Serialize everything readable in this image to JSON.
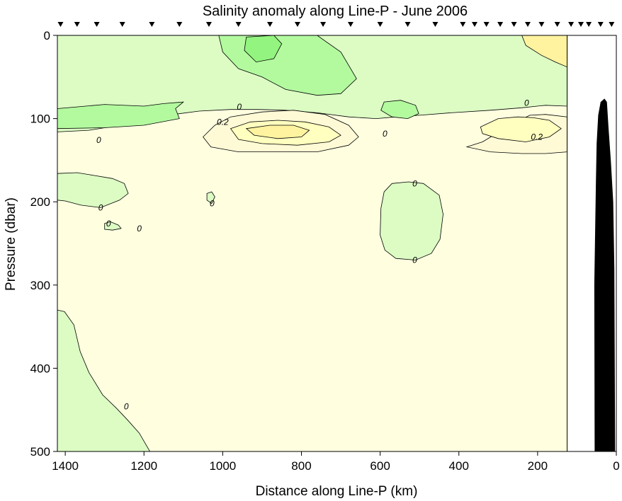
{
  "chart_data": {
    "type": "contour",
    "title": "Salinity anomaly along Line-P - June 2006",
    "xlabel": "Distance along Line-P (km)",
    "ylabel": "Pressure (dbar)",
    "xlim": [
      1420,
      0
    ],
    "ylim": [
      0,
      500
    ],
    "x_ticks": [
      1400,
      1200,
      1000,
      800,
      600,
      400,
      200,
      0
    ],
    "y_ticks": [
      0,
      100,
      200,
      300,
      400,
      500
    ],
    "x_tick_labels": [
      "1400",
      "1200",
      "1000",
      "800",
      "600",
      "400",
      "200",
      "0"
    ],
    "y_tick_labels": [
      "0",
      "100",
      "200",
      "300",
      "400",
      "500"
    ],
    "data_extent_km": 125,
    "stations_km": [
      1412,
      1370,
      1320,
      1255,
      1180,
      1110,
      1035,
      960,
      880,
      810,
      745,
      675,
      600,
      530,
      460,
      390,
      360,
      330,
      295,
      260,
      225,
      190,
      150,
      115,
      90,
      70,
      40,
      12
    ],
    "colors": {
      "zero": "#ffffe0",
      "neg_0_1": "#dcfcc4",
      "neg_0_2": "#b3fa9f",
      "neg_0_3": "#93f47f",
      "pos_0_1": "#fffad6",
      "pos_0_2": "#ffffbf",
      "pos_0_3": "#fff3a0",
      "bathymetry": "#000000"
    },
    "contour_labels": [
      {
        "text": "0",
        "x": 958,
        "y": 86
      },
      {
        "text": "0.2",
        "x": 1000,
        "y": 104
      },
      {
        "text": "0",
        "x": 1315,
        "y": 126
      },
      {
        "text": "0",
        "x": 588,
        "y": 118
      },
      {
        "text": "0",
        "x": 228,
        "y": 81
      },
      {
        "text": "0.2",
        "x": 202,
        "y": 122
      },
      {
        "text": "0",
        "x": 512,
        "y": 178
      },
      {
        "text": "0",
        "x": 1310,
        "y": 207
      },
      {
        "text": "0",
        "x": 1027,
        "y": 202
      },
      {
        "text": "0",
        "x": 1290,
        "y": 226
      },
      {
        "text": "0",
        "x": 1212,
        "y": 232
      },
      {
        "text": "0",
        "x": 512,
        "y": 270
      },
      {
        "text": "0",
        "x": 1245,
        "y": 446
      }
    ],
    "regions": [
      {
        "name": "background-anomaly",
        "value": 0,
        "color": "#ffffe0",
        "points": [
          [
            1420,
            0
          ],
          [
            125,
            0
          ],
          [
            125,
            500
          ],
          [
            1420,
            500
          ]
        ]
      },
      {
        "name": "upper-layer-negative",
        "value": -0.1,
        "color": "#dcfcc4",
        "points": [
          [
            1420,
            0
          ],
          [
            125,
            0
          ],
          [
            125,
            85
          ],
          [
            180,
            84
          ],
          [
            240,
            87
          ],
          [
            320,
            90
          ],
          [
            420,
            93
          ],
          [
            500,
            96
          ],
          [
            560,
            98
          ],
          [
            610,
            100
          ],
          [
            680,
            98
          ],
          [
            760,
            93
          ],
          [
            840,
            90
          ],
          [
            910,
            89
          ],
          [
            980,
            89
          ],
          [
            1060,
            91
          ],
          [
            1140,
            96
          ],
          [
            1200,
            102
          ],
          [
            1260,
            108
          ],
          [
            1340,
            114
          ],
          [
            1420,
            116
          ]
        ]
      },
      {
        "name": "deep-negative-southwest",
        "value": -0.1,
        "color": "#dcfcc4",
        "points": [
          [
            1420,
            330
          ],
          [
            1402,
            332
          ],
          [
            1378,
            348
          ],
          [
            1362,
            380
          ],
          [
            1340,
            405
          ],
          [
            1305,
            432
          ],
          [
            1270,
            448
          ],
          [
            1242,
            462
          ],
          [
            1212,
            478
          ],
          [
            1185,
            500
          ],
          [
            1420,
            500
          ]
        ]
      },
      {
        "name": "mid-negative-patch",
        "value": -0.1,
        "color": "#dcfcc4",
        "points": [
          [
            570,
            178
          ],
          [
            528,
            176
          ],
          [
            490,
            178
          ],
          [
            450,
            192
          ],
          [
            440,
            215
          ],
          [
            448,
            245
          ],
          [
            470,
            262
          ],
          [
            510,
            270
          ],
          [
            560,
            268
          ],
          [
            588,
            258
          ],
          [
            600,
            240
          ],
          [
            598,
            208
          ],
          [
            590,
            188
          ]
        ]
      },
      {
        "name": "left-negative-tongue",
        "value": -0.1,
        "color": "#dcfcc4",
        "points": [
          [
            1420,
            166
          ],
          [
            1370,
            165
          ],
          [
            1330,
            168
          ],
          [
            1280,
            172
          ],
          [
            1250,
            178
          ],
          [
            1240,
            190
          ],
          [
            1262,
            198
          ],
          [
            1310,
            207
          ],
          [
            1360,
            204
          ],
          [
            1400,
            199
          ],
          [
            1420,
            198
          ]
        ]
      },
      {
        "name": "small-negative-blob",
        "value": -0.1,
        "color": "#dcfcc4",
        "points": [
          [
            1300,
            226
          ],
          [
            1285,
            224
          ],
          [
            1265,
            228
          ],
          [
            1258,
            232
          ],
          [
            1280,
            234
          ],
          [
            1300,
            233
          ]
        ]
      },
      {
        "name": "small-negative-blob-2",
        "value": -0.1,
        "color": "#dcfcc4",
        "points": [
          [
            1040,
            190
          ],
          [
            1028,
            188
          ],
          [
            1020,
            194
          ],
          [
            1028,
            202
          ],
          [
            1040,
            198
          ]
        ]
      },
      {
        "name": "upper-negative-core-west",
        "value": -0.2,
        "color": "#b3fa9f",
        "points": [
          [
            1420,
            88
          ],
          [
            1300,
            83
          ],
          [
            1200,
            85
          ],
          [
            1150,
            82
          ],
          [
            1100,
            80
          ],
          [
            1120,
            88
          ],
          [
            1110,
            100
          ],
          [
            1200,
            108
          ],
          [
            1300,
            111
          ],
          [
            1420,
            112
          ]
        ]
      },
      {
        "name": "surface-negative-core",
        "value": -0.2,
        "color": "#b3fa9f",
        "points": [
          [
            1010,
            0
          ],
          [
            760,
            0
          ],
          [
            700,
            20
          ],
          [
            660,
            52
          ],
          [
            700,
            70
          ],
          [
            760,
            72
          ],
          [
            840,
            65
          ],
          [
            900,
            50
          ],
          [
            960,
            40
          ],
          [
            1000,
            20
          ]
        ]
      },
      {
        "name": "mid-negative-core",
        "value": -0.2,
        "color": "#b3fa9f",
        "points": [
          [
            590,
            80
          ],
          [
            548,
            78
          ],
          [
            510,
            84
          ],
          [
            502,
            94
          ],
          [
            530,
            100
          ],
          [
            570,
            98
          ],
          [
            598,
            90
          ]
        ]
      },
      {
        "name": "surface-negative-center",
        "value": -0.3,
        "color": "#93f47f",
        "points": [
          [
            940,
            2
          ],
          [
            870,
            0
          ],
          [
            850,
            10
          ],
          [
            870,
            28
          ],
          [
            915,
            32
          ],
          [
            945,
            18
          ]
        ]
      },
      {
        "name": "positive-core-center",
        "value": 0.1,
        "color": "#fffad6",
        "points": [
          [
            1020,
            108
          ],
          [
            980,
            98
          ],
          [
            900,
            92
          ],
          [
            820,
            90
          ],
          [
            740,
            95
          ],
          [
            680,
            108
          ],
          [
            655,
            122
          ],
          [
            680,
            132
          ],
          [
            760,
            140
          ],
          [
            860,
            140
          ],
          [
            960,
            140
          ],
          [
            1030,
            134
          ],
          [
            1050,
            122
          ]
        ]
      },
      {
        "name": "positive-core-east",
        "value": 0.1,
        "color": "#fffad6",
        "points": [
          [
            380,
            134
          ],
          [
            340,
            128
          ],
          [
            270,
            108
          ],
          [
            220,
            96
          ],
          [
            180,
            95
          ],
          [
            125,
            98
          ],
          [
            125,
            140
          ],
          [
            180,
            142
          ],
          [
            240,
            142
          ],
          [
            320,
            140
          ]
        ]
      },
      {
        "name": "positive-inner-center",
        "value": 0.2,
        "color": "#ffffbf",
        "points": [
          [
            980,
            112
          ],
          [
            930,
            104
          ],
          [
            860,
            102
          ],
          [
            790,
            104
          ],
          [
            730,
            110
          ],
          [
            700,
            120
          ],
          [
            730,
            128
          ],
          [
            810,
            132
          ],
          [
            900,
            130
          ],
          [
            960,
            125
          ]
        ]
      },
      {
        "name": "positive-inner-east",
        "value": 0.2,
        "color": "#ffffbf",
        "points": [
          [
            345,
            110
          ],
          [
            300,
            100
          ],
          [
            250,
            98
          ],
          [
            210,
            99
          ],
          [
            170,
            102
          ],
          [
            140,
            112
          ],
          [
            170,
            122
          ],
          [
            230,
            128
          ],
          [
            300,
            124
          ],
          [
            340,
            118
          ]
        ]
      },
      {
        "name": "positive-surface-east",
        "value": 0.2,
        "color": "#fff3a0",
        "points": [
          [
            240,
            0
          ],
          [
            125,
            0
          ],
          [
            125,
            38
          ],
          [
            155,
            32
          ],
          [
            190,
            24
          ],
          [
            230,
            12
          ]
        ]
      },
      {
        "name": "positive-center-peak",
        "value": 0.3,
        "color": "#fff3a0",
        "points": [
          [
            940,
            112
          ],
          [
            880,
            108
          ],
          [
            820,
            108
          ],
          [
            780,
            114
          ],
          [
            800,
            122
          ],
          [
            860,
            124
          ],
          [
            920,
            120
          ]
        ]
      }
    ],
    "bathymetry": {
      "name": "seafloor",
      "color": "#000000",
      "points": [
        [
          55,
          500
        ],
        [
          56,
          300
        ],
        [
          54,
          240
        ],
        [
          52,
          180
        ],
        [
          50,
          130
        ],
        [
          46,
          96
        ],
        [
          40,
          80
        ],
        [
          30,
          76
        ],
        [
          24,
          80
        ],
        [
          20,
          110
        ],
        [
          14,
          150
        ],
        [
          8,
          200
        ],
        [
          5,
          280
        ],
        [
          3,
          500
        ]
      ]
    }
  }
}
